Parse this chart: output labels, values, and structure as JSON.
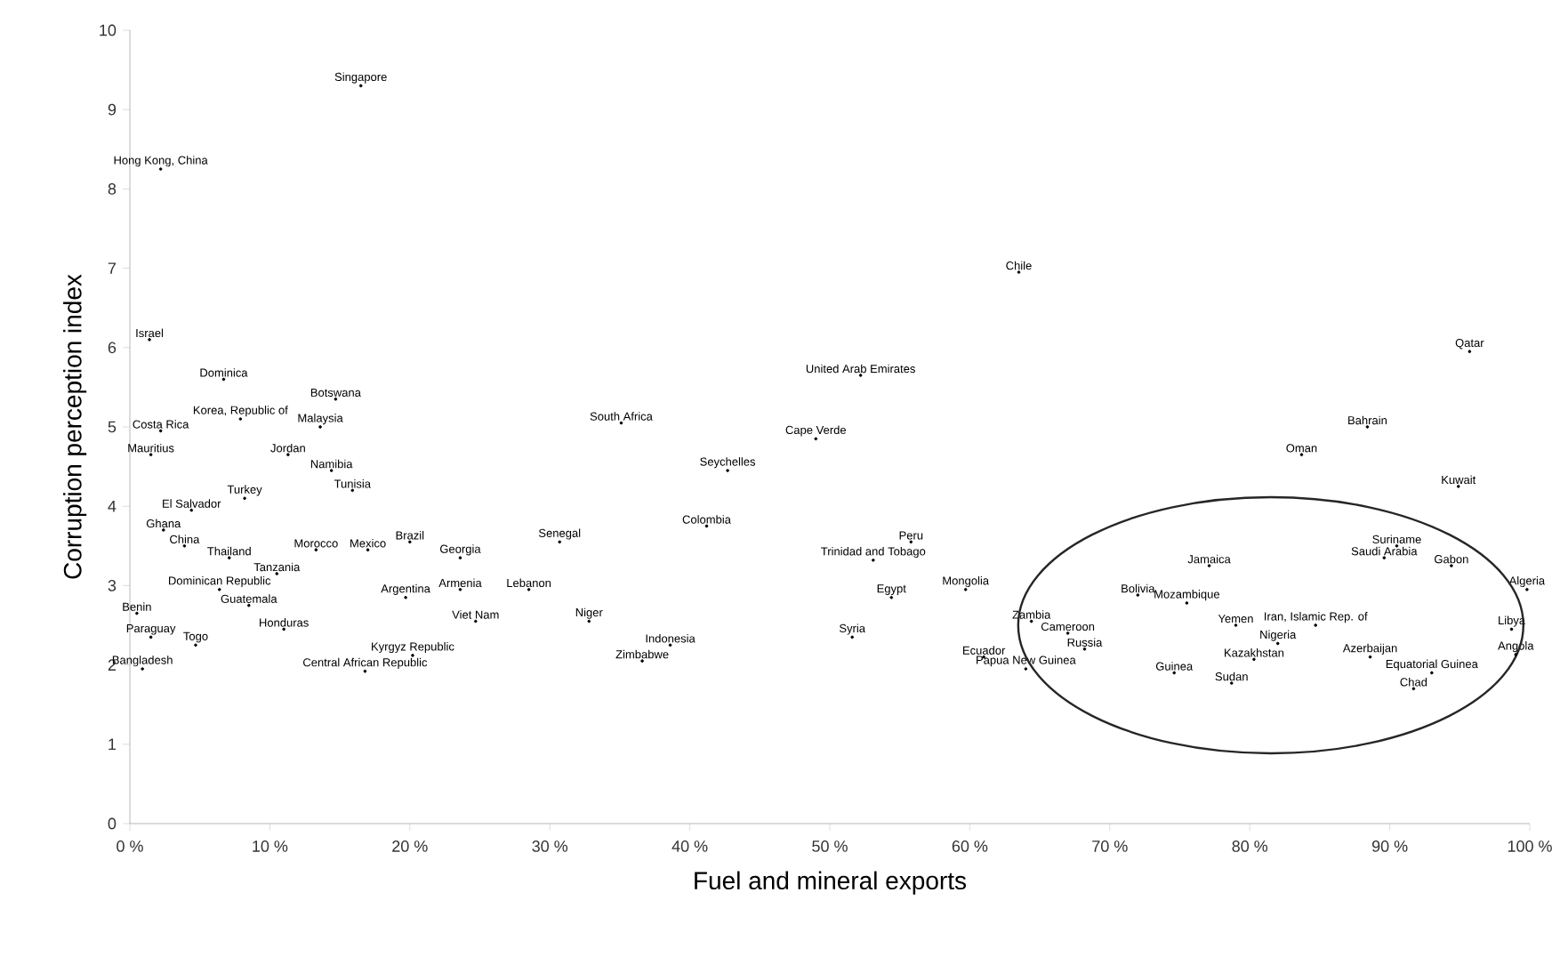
{
  "chart_data": {
    "type": "scatter",
    "xlabel": "Fuel and mineral exports",
    "ylabel": "Corruption perception index",
    "marker": "circle",
    "grid": false,
    "xlim": [
      0,
      100
    ],
    "ylim": [
      0,
      10
    ],
    "xticks": [
      {
        "value": 0,
        "label": "0 %"
      },
      {
        "value": 10,
        "label": "10 %"
      },
      {
        "value": 20,
        "label": "20 %"
      },
      {
        "value": 30,
        "label": "30 %"
      },
      {
        "value": 40,
        "label": "40 %"
      },
      {
        "value": 50,
        "label": "50 %"
      },
      {
        "value": 60,
        "label": "60 %"
      },
      {
        "value": 70,
        "label": "70 %"
      },
      {
        "value": 80,
        "label": "80 %"
      },
      {
        "value": 90,
        "label": "90 %"
      },
      {
        "value": 100,
        "label": "100 %"
      }
    ],
    "yticks": [
      0,
      1,
      2,
      3,
      4,
      5,
      6,
      7,
      8,
      9,
      10
    ],
    "series": [
      {
        "color": "#000000",
        "x": [
          16.5,
          2.2,
          1.4,
          6.7,
          14.7,
          7.9,
          13.6,
          2.2,
          1.5,
          11.3,
          14.4,
          15.9,
          35.1,
          52.2,
          49.0,
          42.7,
          41.2,
          30.7,
          63.5,
          95.7,
          88.4,
          83.7,
          94.9,
          77.1,
          90.5,
          89.6,
          94.4,
          99.8,
          72.0,
          75.5,
          64.4,
          67.0,
          68.2,
          64.0,
          61.0,
          74.6,
          78.7,
          79.0,
          84.7,
          80.3,
          82.0,
          88.6,
          93.0,
          91.7,
          98.7,
          99.0,
          55.8,
          53.1,
          54.4,
          59.7,
          51.6,
          32.8,
          38.6,
          36.6,
          24.7,
          28.5,
          23.6,
          19.7,
          23.6,
          13.3,
          17.0,
          20.0,
          20.2,
          16.8,
          8.2,
          4.4,
          2.4,
          3.9,
          7.1,
          10.5,
          6.4,
          8.5,
          0.5,
          11.0,
          1.5,
          4.7,
          0.9
        ],
        "values": [
          9.3,
          8.25,
          6.1,
          5.6,
          5.35,
          5.1,
          5.0,
          4.95,
          4.65,
          4.65,
          4.45,
          4.2,
          5.05,
          5.65,
          4.85,
          4.45,
          3.75,
          3.55,
          6.95,
          5.95,
          5.0,
          4.65,
          4.25,
          3.25,
          3.5,
          3.35,
          3.25,
          2.95,
          2.88,
          2.78,
          2.55,
          2.4,
          2.2,
          1.95,
          2.1,
          1.9,
          1.77,
          2.5,
          2.5,
          2.07,
          2.27,
          2.1,
          1.9,
          1.7,
          2.45,
          2.13,
          3.55,
          3.32,
          2.85,
          2.95,
          2.35,
          2.55,
          2.25,
          2.05,
          2.55,
          2.95,
          2.95,
          2.85,
          3.35,
          3.45,
          3.45,
          3.55,
          2.12,
          1.92,
          4.1,
          3.95,
          3.7,
          3.5,
          3.35,
          3.15,
          2.95,
          2.75,
          2.65,
          2.45,
          2.35,
          2.25,
          1.95
        ],
        "value_labels": [
          "Singapore",
          "Hong Kong, China",
          "Israel",
          "Dominica",
          "Botswana",
          "Korea, Republic of",
          "Malaysia",
          "Costa Rica",
          "Mauritius",
          "Jordan",
          "Namibia",
          "Tunisia",
          "South Africa",
          "United Arab Emirates",
          "Cape Verde",
          "Seychelles",
          "Colombia",
          "Senegal",
          "Chile",
          "Qatar",
          "Bahrain",
          "Oman",
          "Kuwait",
          "Jamaica",
          "Suriname",
          "Saudi Arabia",
          "Gabon",
          "Algeria",
          "Bolivia",
          "Mozambique",
          "Zambia",
          "Cameroon",
          "Russia",
          "Papua New Guinea",
          "Ecuador",
          "Guinea",
          "Sudan",
          "Yemen",
          "Iran, Islamic Rep. of",
          "Kazakhstan",
          "Nigeria",
          "Azerbaijan",
          "Equatorial Guinea",
          "Chad",
          "Libya",
          "Angola",
          "Peru",
          "Trinidad and Tobago",
          "Egypt",
          "Mongolia",
          "Syria",
          "Niger",
          "Indonesia",
          "Zimbabwe",
          "Viet Nam",
          "Lebanon",
          "Armenia",
          "Argentina",
          "Georgia",
          "Morocco",
          "Mexico",
          "Brazil",
          "Kyrgyz Republic",
          "Central African Republic",
          "Turkey",
          "El Salvador",
          "Ghana",
          "China",
          "Thailand",
          "Tanzania",
          "Dominican Republic",
          "Guatemala",
          "Benin",
          "Honduras",
          "Paraguay",
          "Togo",
          "Bangladesh"
        ]
      }
    ]
  }
}
